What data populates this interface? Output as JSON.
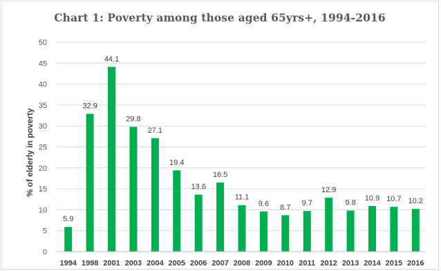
{
  "chart_data": {
    "type": "bar",
    "title": "Chart 1: Poverty among those aged 65yrs+, 1994-2016",
    "xlabel": "",
    "ylabel": "% of elderly in poverty",
    "ylim": [
      0,
      50
    ],
    "yticks": [
      0,
      5,
      10,
      15,
      20,
      25,
      30,
      35,
      40,
      45,
      50
    ],
    "grid": true,
    "legend": "none",
    "categories": [
      "1994",
      "1998",
      "2001",
      "2003",
      "2004",
      "2005",
      "2006",
      "2007",
      "2008",
      "2009",
      "2010",
      "2011",
      "2012",
      "2013",
      "2014",
      "2015",
      "2016"
    ],
    "values": [
      5.9,
      32.9,
      44.1,
      29.8,
      27.1,
      19.4,
      13.6,
      16.5,
      11.1,
      9.6,
      8.7,
      9.7,
      12.9,
      9.8,
      10.9,
      10.7,
      10.2
    ],
    "data_labels": [
      "5.9",
      "32.9",
      "44.1",
      "29.8",
      "27.1",
      "19.4",
      "13.6",
      "16.5",
      "11.1",
      "9.6",
      "8.7",
      "9.7",
      "12.9",
      "9.8",
      "10.9",
      "10.7",
      "10.2"
    ],
    "colors": {
      "bar": "#00b050",
      "grid": "#d9d9d9",
      "axis": "#bfbfbf",
      "text": "#595959"
    }
  }
}
